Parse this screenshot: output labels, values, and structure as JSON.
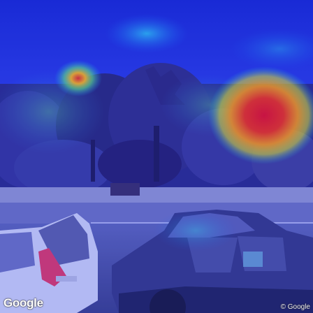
{
  "logo_text": "Google",
  "copyright_text": "© Google"
}
